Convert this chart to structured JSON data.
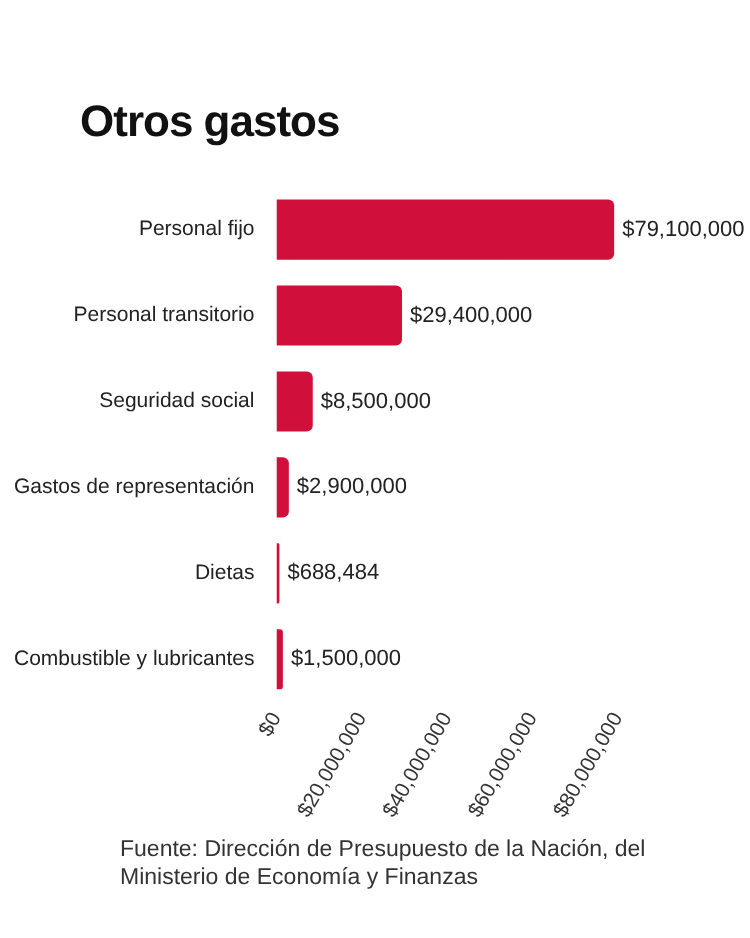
{
  "chart_data": {
    "type": "bar",
    "orientation": "horizontal",
    "title": "Otros gastos",
    "categories": [
      "Personal fijo",
      "Personal transitorio",
      "Seguridad social",
      "Gastos de representación",
      "Dietas",
      "Combustible y lubricantes"
    ],
    "values": [
      79100000,
      29400000,
      8500000,
      2900000,
      688484,
      1500000
    ],
    "value_labels": [
      "$79,100,000",
      "$29,400,000",
      "$8,500,000",
      "$2,900,000",
      "$688,484",
      "$1,500,000"
    ],
    "color": "#d0103a",
    "xlim": [
      0,
      80000000
    ],
    "xticks": [
      {
        "value": 0,
        "label": "$0"
      },
      {
        "value": 20000000,
        "label": "$20,000,000"
      },
      {
        "value": 40000000,
        "label": "$40,000,000"
      },
      {
        "value": 60000000,
        "label": "$60,000,000"
      },
      {
        "value": 80000000,
        "label": "$80,000,000"
      }
    ],
    "annotations": [
      "Fuente: Dirección de Presupuesto de la Nación, del Ministerio de Economía y Finanzas"
    ]
  }
}
